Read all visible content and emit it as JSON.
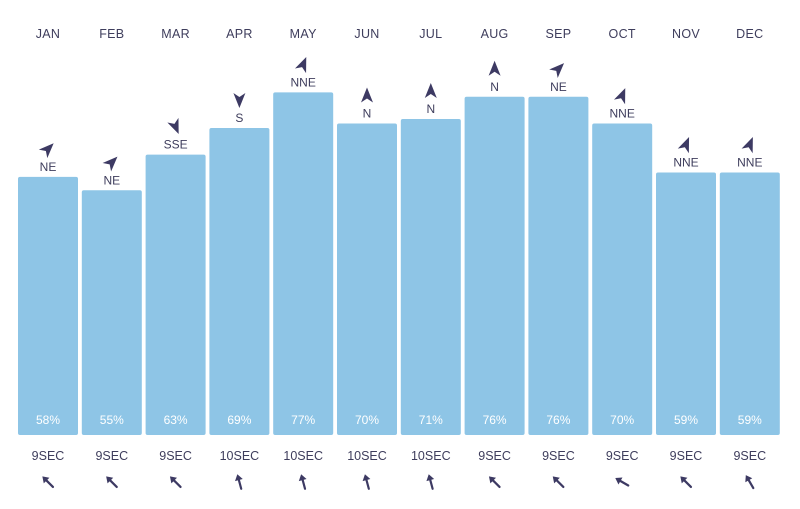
{
  "chart_data": {
    "type": "bar",
    "title": "",
    "xlabel": "",
    "ylabel": "",
    "ylim": [
      0,
      100
    ],
    "grid": false,
    "categories": [
      "JAN",
      "FEB",
      "MAR",
      "APR",
      "MAY",
      "JUN",
      "JUL",
      "AUG",
      "SEP",
      "OCT",
      "NOV",
      "DEC"
    ],
    "values": [
      58,
      55,
      63,
      69,
      77,
      70,
      71,
      76,
      76,
      70,
      59,
      59
    ],
    "value_labels": [
      "58%",
      "55%",
      "63%",
      "69%",
      "77%",
      "70%",
      "71%",
      "76%",
      "76%",
      "70%",
      "59%",
      "59%"
    ],
    "wind_direction_labels": [
      "NE",
      "NE",
      "SSE",
      "S",
      "NNE",
      "N",
      "N",
      "N",
      "NE",
      "NNE",
      "NNE",
      "NNE"
    ],
    "wind_direction_deg": [
      45,
      45,
      157.5,
      180,
      22.5,
      0,
      0,
      0,
      45,
      22.5,
      22.5,
      22.5
    ],
    "swell_period_labels": [
      "9SEC",
      "9SEC",
      "9SEC",
      "10SEC",
      "10SEC",
      "10SEC",
      "10SEC",
      "9SEC",
      "9SEC",
      "9SEC",
      "9SEC",
      "9SEC"
    ],
    "swell_direction_deg": [
      315,
      315,
      315,
      345,
      345,
      345,
      345,
      315,
      315,
      300,
      315,
      330
    ],
    "colors": {
      "bar": "#8ec5e6",
      "text": "#3e3d5c",
      "value_text": "#ffffff",
      "arrow": "#3d3a63"
    }
  }
}
